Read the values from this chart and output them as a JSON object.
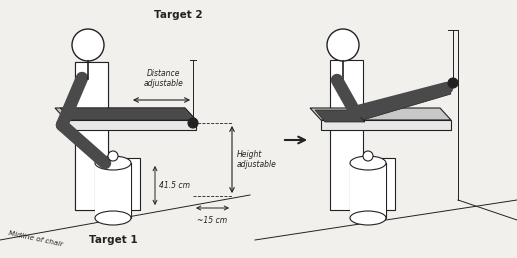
{
  "bg_color": "#f2f0ec",
  "title": "Target 2",
  "target1_label": "Target 1",
  "midline_label": "Midline of chair",
  "distance_label": "Distance\nadjustable",
  "height_label": "Height\nadjustable",
  "dim1_label": "~15 cm",
  "dim2_label": "41.5 cm",
  "dark_gray": "#4a4a4a",
  "mid_gray": "#888888",
  "light_gray": "#c8c8c8",
  "wall_color": "#e8e8e8",
  "arrow_color": "#222222"
}
